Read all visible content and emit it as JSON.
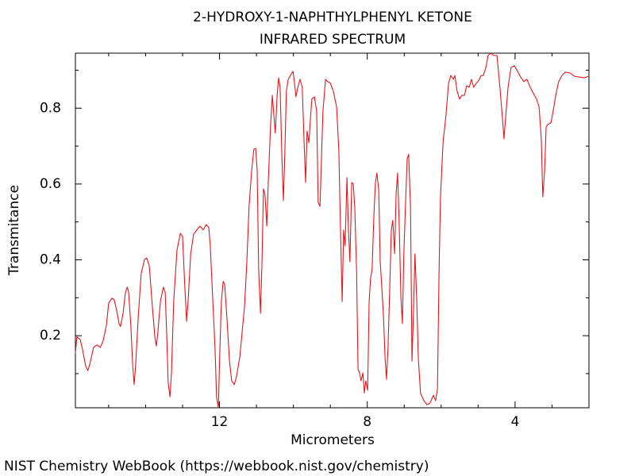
{
  "chart_data": {
    "type": "line",
    "title": "2-HYDROXY-1-NAPHTHYLPHENYL KETONE",
    "subtitle": "INFRARED SPECTRUM",
    "x_label": "Micrometers",
    "y_label": "Transmitance",
    "source": "NIST Chemistry WebBook (https://webbook.nist.gov/chemistry)",
    "color": "#e8141b",
    "xlim": [
      15.9,
      2.0
    ],
    "ylim": [
      0.01,
      0.945
    ],
    "xticks": [
      12,
      8,
      4
    ],
    "yticks": [
      0.2,
      0.4,
      0.6,
      0.8
    ],
    "xminor": [
      15,
      14,
      13,
      11,
      10,
      9,
      7,
      6,
      5,
      3
    ],
    "yminor": [
      0.1,
      0.3,
      0.5,
      0.7,
      0.9
    ],
    "x": [
      15.9,
      15.86,
      15.77,
      15.71,
      15.62,
      15.56,
      15.49,
      15.41,
      15.32,
      15.23,
      15.15,
      15.06,
      15.0,
      14.91,
      14.85,
      14.78,
      14.72,
      14.68,
      14.61,
      14.55,
      14.5,
      14.46,
      14.4,
      14.35,
      14.31,
      14.27,
      14.2,
      14.12,
      14.03,
      13.97,
      13.9,
      13.82,
      13.75,
      13.71,
      13.67,
      13.6,
      13.52,
      13.47,
      13.43,
      13.39,
      13.34,
      13.3,
      13.24,
      13.15,
      13.06,
      13.0,
      12.94,
      12.89,
      12.85,
      12.78,
      12.7,
      12.61,
      12.53,
      12.44,
      12.36,
      12.29,
      12.25,
      12.18,
      12.12,
      12.08,
      12.03,
      11.99,
      11.95,
      11.9,
      11.86,
      11.8,
      11.73,
      11.67,
      11.6,
      11.54,
      11.45,
      11.39,
      11.32,
      11.26,
      11.2,
      11.13,
      11.07,
      11.02,
      10.98,
      10.94,
      10.89,
      10.85,
      10.81,
      10.77,
      10.72,
      10.68,
      10.62,
      10.57,
      10.53,
      10.49,
      10.44,
      10.4,
      10.36,
      10.31,
      10.27,
      10.23,
      10.19,
      10.14,
      10.08,
      10.01,
      9.97,
      9.93,
      9.88,
      9.82,
      9.76,
      9.71,
      9.67,
      9.63,
      9.58,
      9.54,
      9.5,
      9.43,
      9.37,
      9.33,
      9.28,
      9.24,
      9.2,
      9.13,
      9.07,
      9.0,
      8.92,
      8.83,
      8.77,
      8.72,
      8.68,
      8.64,
      8.6,
      8.55,
      8.51,
      8.47,
      8.42,
      8.38,
      8.34,
      8.29,
      8.25,
      8.21,
      8.17,
      8.12,
      8.08,
      8.04,
      7.99,
      7.95,
      7.91,
      7.87,
      7.82,
      7.78,
      7.74,
      7.69,
      7.65,
      7.61,
      7.56,
      7.52,
      7.48,
      7.44,
      7.39,
      7.35,
      7.31,
      7.26,
      7.22,
      7.18,
      7.14,
      7.09,
      7.05,
      7.01,
      6.96,
      6.92,
      6.88,
      6.83,
      6.79,
      6.75,
      6.71,
      6.66,
      6.62,
      6.56,
      6.47,
      6.38,
      6.3,
      6.21,
      6.15,
      6.1,
      6.06,
      6.02,
      5.95,
      5.87,
      5.8,
      5.74,
      5.67,
      5.63,
      5.57,
      5.5,
      5.44,
      5.37,
      5.31,
      5.24,
      5.18,
      5.12,
      5.05,
      4.99,
      4.92,
      4.86,
      4.79,
      4.73,
      4.66,
      4.58,
      4.49,
      4.41,
      4.34,
      4.3,
      4.26,
      4.19,
      4.11,
      4.02,
      3.93,
      3.85,
      3.76,
      3.68,
      3.59,
      3.5,
      3.42,
      3.35,
      3.29,
      3.25,
      3.2,
      3.16,
      3.12,
      3.03,
      2.97,
      2.9,
      2.82,
      2.73,
      2.64,
      2.52,
      2.39,
      2.26,
      2.13,
      2.0
    ],
    "values": [
      0.154,
      0.197,
      0.19,
      0.165,
      0.119,
      0.108,
      0.133,
      0.169,
      0.176,
      0.169,
      0.186,
      0.228,
      0.286,
      0.299,
      0.295,
      0.265,
      0.232,
      0.224,
      0.259,
      0.311,
      0.328,
      0.315,
      0.228,
      0.123,
      0.071,
      0.123,
      0.248,
      0.364,
      0.401,
      0.405,
      0.384,
      0.28,
      0.197,
      0.173,
      0.207,
      0.29,
      0.328,
      0.315,
      0.207,
      0.077,
      0.039,
      0.102,
      0.29,
      0.426,
      0.47,
      0.462,
      0.332,
      0.238,
      0.29,
      0.416,
      0.468,
      0.479,
      0.489,
      0.479,
      0.493,
      0.485,
      0.437,
      0.29,
      0.165,
      0.039,
      0.01,
      0.165,
      0.29,
      0.343,
      0.336,
      0.248,
      0.133,
      0.081,
      0.071,
      0.092,
      0.144,
      0.207,
      0.28,
      0.395,
      0.541,
      0.635,
      0.692,
      0.694,
      0.635,
      0.374,
      0.259,
      0.395,
      0.587,
      0.573,
      0.489,
      0.604,
      0.75,
      0.834,
      0.782,
      0.734,
      0.834,
      0.88,
      0.855,
      0.667,
      0.556,
      0.688,
      0.845,
      0.876,
      0.886,
      0.897,
      0.866,
      0.83,
      0.855,
      0.876,
      0.855,
      0.709,
      0.604,
      0.74,
      0.709,
      0.771,
      0.824,
      0.83,
      0.792,
      0.552,
      0.541,
      0.667,
      0.792,
      0.876,
      0.87,
      0.866,
      0.845,
      0.803,
      0.688,
      0.458,
      0.29,
      0.479,
      0.437,
      0.617,
      0.479,
      0.395,
      0.604,
      0.6,
      0.541,
      0.374,
      0.112,
      0.102,
      0.081,
      0.102,
      0.049,
      0.081,
      0.056,
      0.29,
      0.353,
      0.374,
      0.52,
      0.604,
      0.629,
      0.583,
      0.395,
      0.332,
      0.248,
      0.144,
      0.085,
      0.165,
      0.332,
      0.479,
      0.504,
      0.416,
      0.573,
      0.629,
      0.51,
      0.301,
      0.232,
      0.416,
      0.562,
      0.667,
      0.678,
      0.541,
      0.133,
      0.259,
      0.416,
      0.29,
      0.144,
      0.049,
      0.029,
      0.018,
      0.023,
      0.043,
      0.029,
      0.06,
      0.353,
      0.562,
      0.709,
      0.782,
      0.866,
      0.886,
      0.876,
      0.886,
      0.845,
      0.824,
      0.834,
      0.834,
      0.859,
      0.855,
      0.876,
      0.855,
      0.866,
      0.872,
      0.886,
      0.886,
      0.907,
      0.939,
      0.945,
      0.939,
      0.939,
      0.855,
      0.771,
      0.719,
      0.771,
      0.855,
      0.907,
      0.912,
      0.897,
      0.882,
      0.87,
      0.876,
      0.855,
      0.838,
      0.824,
      0.803,
      0.719,
      0.566,
      0.635,
      0.75,
      0.757,
      0.761,
      0.792,
      0.834,
      0.87,
      0.886,
      0.895,
      0.893,
      0.884,
      0.882,
      0.88,
      0.884
    ]
  }
}
